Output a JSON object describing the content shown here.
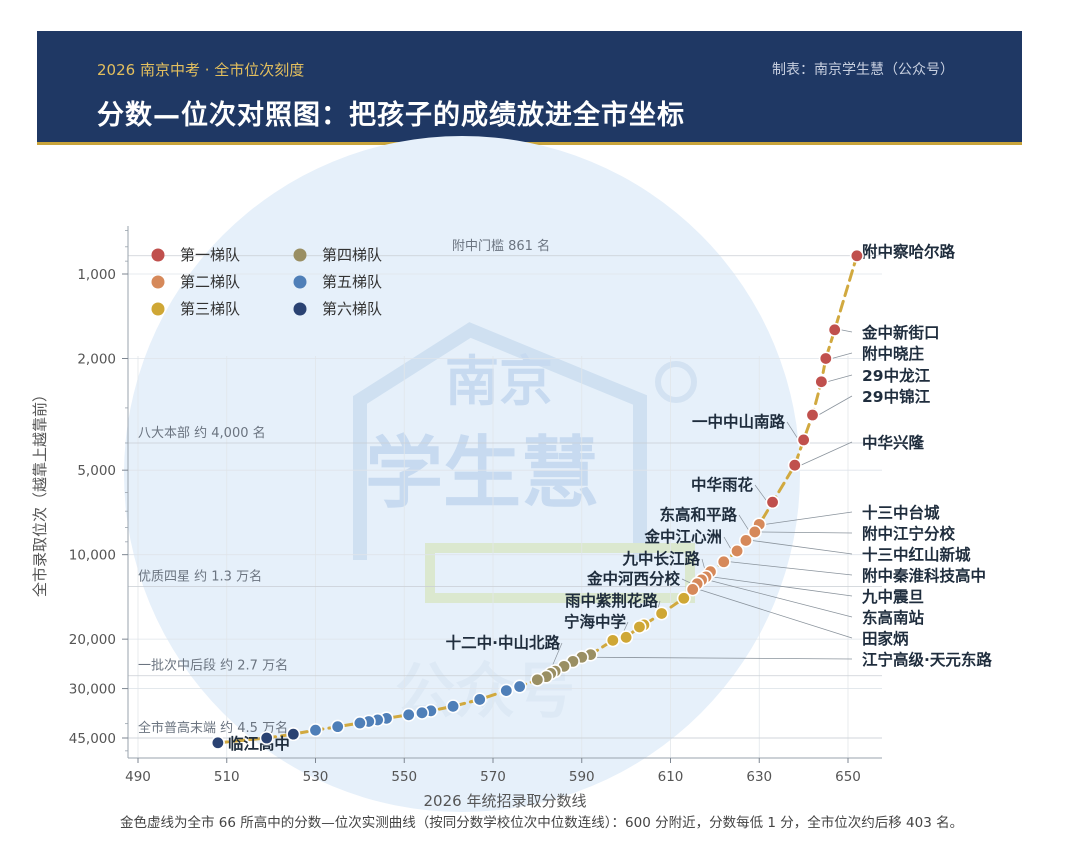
{
  "header": {
    "kicker": "2026 南京中考 · 全市位次刻度",
    "maker": "制表：南京学生慧（公众号）",
    "title": "分数—位次对照图：把孩子的成绩放进全市坐标"
  },
  "watermark": {
    "line1": "南京",
    "line2": "学生慧",
    "line3": "公众号"
  },
  "footnote": "金色虚线为全市 66 所高中的分数—位次实测曲线（按同分数学校位次中位数连线）：600 分附近，分数每低 1 分，全市位次约后移 403 名。",
  "colors": {
    "tier1": "#c0504d",
    "tier2": "#d6895a",
    "tier3": "#cfa735",
    "tier4": "#9a8f63",
    "tier5": "#4f7fb8",
    "tier6": "#2a4272",
    "curve": "#d1a93f",
    "header": "#1f3864"
  },
  "chart_data": {
    "type": "scatter",
    "xlabel": "2026 年统招录取分数线",
    "ylabel": "全市录取位次（越靠上越靠前）",
    "yscale": "log-reversed",
    "xlim": [
      485,
      662
    ],
    "ylim": [
      700,
      50000
    ],
    "x_ticks": [
      490,
      510,
      530,
      550,
      570,
      590,
      610,
      630,
      650
    ],
    "y_ticks": [
      {
        "value": 1000,
        "label": "1,000"
      },
      {
        "value": 2000,
        "label": "2,000"
      },
      {
        "value": 5000,
        "label": "5,000"
      },
      {
        "value": 10000,
        "label": "10,000"
      },
      {
        "value": 20000,
        "label": "20,000"
      },
      {
        "value": 30000,
        "label": "30,000"
      },
      {
        "value": 45000,
        "label": "45,000"
      }
    ],
    "legend": {
      "placement": "top-left",
      "items": [
        {
          "tier": 1,
          "label": "第一梯队"
        },
        {
          "tier": 2,
          "label": "第二梯队"
        },
        {
          "tier": 3,
          "label": "第三梯队"
        },
        {
          "tier": 4,
          "label": "第四梯队"
        },
        {
          "tier": 5,
          "label": "第五梯队"
        },
        {
          "tier": 6,
          "label": "第六梯队"
        }
      ]
    },
    "reference_lines": [
      {
        "rank": 861,
        "label": "附中门槛 861 名"
      },
      {
        "rank": 4000,
        "label": "八大本部 约 4,000 名"
      },
      {
        "rank": 13000,
        "label": "优质四星 约 1.3 万名"
      },
      {
        "rank": 27000,
        "label": "一批次中后段 约 2.7 万名"
      },
      {
        "rank": 45000,
        "label": "全市普高末端 约 4.5 万名"
      }
    ],
    "points": [
      {
        "x": 652,
        "rank": 861,
        "tier": 1
      },
      {
        "x": 647,
        "rank": 1580,
        "tier": 1
      },
      {
        "x": 645,
        "rank": 2000,
        "tier": 1
      },
      {
        "x": 644,
        "rank": 2420,
        "tier": 1
      },
      {
        "x": 642,
        "rank": 3180,
        "tier": 1
      },
      {
        "x": 640,
        "rank": 3900,
        "tier": 1
      },
      {
        "x": 638,
        "rank": 4800,
        "tier": 1
      },
      {
        "x": 633,
        "rank": 6500,
        "tier": 1
      },
      {
        "x": 630,
        "rank": 7800,
        "tier": 2
      },
      {
        "x": 629,
        "rank": 8300,
        "tier": 2
      },
      {
        "x": 627,
        "rank": 8900,
        "tier": 2
      },
      {
        "x": 625,
        "rank": 9700,
        "tier": 2
      },
      {
        "x": 622,
        "rank": 10600,
        "tier": 2
      },
      {
        "x": 619,
        "rank": 11500,
        "tier": 2
      },
      {
        "x": 618,
        "rank": 12000,
        "tier": 2
      },
      {
        "x": 617,
        "rank": 12300,
        "tier": 2
      },
      {
        "x": 616,
        "rank": 12700,
        "tier": 2
      },
      {
        "x": 615,
        "rank": 13300,
        "tier": 2
      },
      {
        "x": 613,
        "rank": 14300,
        "tier": 3
      },
      {
        "x": 608,
        "rank": 16200,
        "tier": 3
      },
      {
        "x": 604,
        "rank": 17800,
        "tier": 3
      },
      {
        "x": 603,
        "rank": 18100,
        "tier": 3
      },
      {
        "x": 600,
        "rank": 19700,
        "tier": 3
      },
      {
        "x": 597,
        "rank": 20200,
        "tier": 3
      },
      {
        "x": 592,
        "rank": 22700,
        "tier": 4
      },
      {
        "x": 590,
        "rank": 23200,
        "tier": 4
      },
      {
        "x": 588,
        "rank": 24000,
        "tier": 4
      },
      {
        "x": 586,
        "rank": 25000,
        "tier": 4
      },
      {
        "x": 584,
        "rank": 26000,
        "tier": 4
      },
      {
        "x": 583,
        "rank": 26500,
        "tier": 4
      },
      {
        "x": 582,
        "rank": 27200,
        "tier": 4
      },
      {
        "x": 580,
        "rank": 27900,
        "tier": 4
      },
      {
        "x": 576,
        "rank": 29500,
        "tier": 5
      },
      {
        "x": 573,
        "rank": 30500,
        "tier": 5
      },
      {
        "x": 567,
        "rank": 32800,
        "tier": 5
      },
      {
        "x": 561,
        "rank": 34700,
        "tier": 5
      },
      {
        "x": 556,
        "rank": 36000,
        "tier": 5
      },
      {
        "x": 554,
        "rank": 36600,
        "tier": 5
      },
      {
        "x": 551,
        "rank": 37200,
        "tier": 5
      },
      {
        "x": 546,
        "rank": 38300,
        "tier": 5
      },
      {
        "x": 544,
        "rank": 38800,
        "tier": 5
      },
      {
        "x": 542,
        "rank": 39300,
        "tier": 5
      },
      {
        "x": 540,
        "rank": 39800,
        "tier": 5
      },
      {
        "x": 535,
        "rank": 41000,
        "tier": 5
      },
      {
        "x": 530,
        "rank": 42200,
        "tier": 5
      },
      {
        "x": 525,
        "rank": 43600,
        "tier": 6
      },
      {
        "x": 519,
        "rank": 45000,
        "tier": 6
      },
      {
        "x": 508,
        "rank": 46800,
        "tier": 6
      }
    ],
    "annotations": [
      {
        "text": "附中察哈尔路",
        "x": 652,
        "rank": 861,
        "side": "right"
      },
      {
        "text": "金中新街口",
        "x": 647,
        "rank": 1580,
        "side": "right"
      },
      {
        "text": "附中晓庄",
        "x": 645,
        "rank": 2000,
        "side": "right"
      },
      {
        "text": "29中龙江",
        "x": 644,
        "rank": 2420,
        "side": "right"
      },
      {
        "text": "29中锦江",
        "x": 642,
        "rank": 3180,
        "side": "right"
      },
      {
        "text": "一中中山南路",
        "x": 640,
        "rank": 3900,
        "side": "left"
      },
      {
        "text": "中华兴隆",
        "x": 638,
        "rank": 4800,
        "side": "right"
      },
      {
        "text": "中华雨花",
        "x": 633,
        "rank": 6500,
        "side": "left"
      },
      {
        "text": "十三中台城",
        "x": 630,
        "rank": 7800,
        "side": "right"
      },
      {
        "text": "附中江宁分校",
        "x": 629,
        "rank": 8300,
        "side": "right"
      },
      {
        "text": "东高和平路",
        "x": 629,
        "rank": 8300,
        "side": "left"
      },
      {
        "text": "十三中红山新城",
        "x": 627,
        "rank": 8900,
        "side": "right"
      },
      {
        "text": "金中江心洲",
        "x": 625,
        "rank": 9700,
        "side": "left"
      },
      {
        "text": "附中秦淮科技高中",
        "x": 622,
        "rank": 10600,
        "side": "right"
      },
      {
        "text": "九中长江路",
        "x": 619,
        "rank": 11500,
        "side": "left"
      },
      {
        "text": "九中震旦",
        "x": 618,
        "rank": 12000,
        "side": "right"
      },
      {
        "text": "东高南站",
        "x": 617,
        "rank": 12300,
        "side": "right"
      },
      {
        "text": "金中河西分校",
        "x": 616,
        "rank": 12700,
        "side": "left"
      },
      {
        "text": "田家炳",
        "x": 615,
        "rank": 13300,
        "side": "right"
      },
      {
        "text": "雨中紫荆花路",
        "x": 608,
        "rank": 16200,
        "side": "left"
      },
      {
        "text": "宁海中学",
        "x": 600,
        "rank": 19700,
        "side": "left"
      },
      {
        "text": "江宁高级·天元东路",
        "x": 590,
        "rank": 23200,
        "side": "right"
      },
      {
        "text": "十二中·中山北路",
        "x": 584,
        "rank": 26000,
        "side": "left"
      },
      {
        "text": "临江高中",
        "x": 508,
        "rank": 46800,
        "side": "right"
      }
    ]
  }
}
